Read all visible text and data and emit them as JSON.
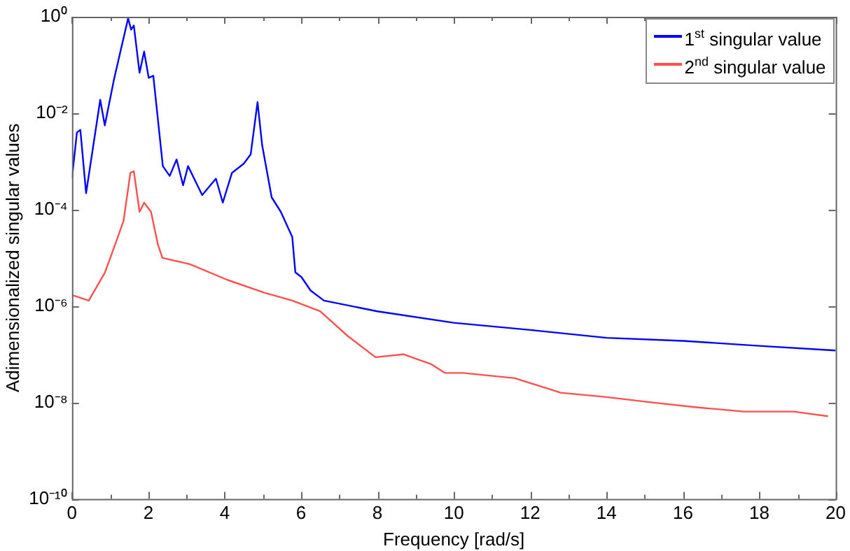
{
  "chart_data": {
    "type": "line",
    "xlabel": "Frequency [rad/s]",
    "ylabel": "Adimensionalized singular values",
    "log": "y",
    "grid": false,
    "legend": "top right",
    "marker": "none",
    "line_style": "solid",
    "xlim": [
      0,
      20
    ],
    "xticks": [
      0,
      {
        "value": 1,
        "label": null
      },
      2,
      {
        "value": 3,
        "label": null
      },
      4,
      {
        "value": 5,
        "label": null
      },
      6,
      {
        "value": 7,
        "label": null
      },
      8,
      {
        "value": 9,
        "label": null
      },
      10,
      {
        "value": 11,
        "label": null
      },
      12,
      {
        "value": 13,
        "label": null
      },
      14,
      {
        "value": 15,
        "label": null
      },
      16,
      {
        "value": 17,
        "label": null
      },
      18,
      {
        "value": 19,
        "label": null
      },
      20
    ],
    "ylim": [
      1e-10,
      1
    ],
    "yticks": [
      {
        "value": 1,
        "label": "10⁰"
      },
      {
        "value": 0.01,
        "label": "10⁻²"
      },
      {
        "value": 0.0001,
        "label": "10⁻⁴"
      },
      {
        "value": 1e-06,
        "label": "10⁻⁶"
      },
      {
        "value": 1e-08,
        "label": "10⁻⁸"
      },
      {
        "value": 1e-10,
        "label": "10⁻¹⁰"
      }
    ],
    "series": [
      {
        "name": "1$^{st}$ singular value",
        "color": "#0000ff",
        "x": [
          0,
          0.13,
          0.22,
          0.37,
          0.74,
          0.86,
          1.1,
          1.47,
          1.55,
          1.62,
          1.77,
          1.89,
          2.01,
          2.13,
          2.38,
          2.56,
          2.74,
          2.91,
          3.04,
          3.41,
          3.77,
          3.95,
          4.19,
          4.5,
          4.68,
          4.86,
          4.98,
          5.23,
          5.47,
          5.77,
          5.85,
          6.01,
          6.25,
          6.6,
          8,
          10,
          12,
          14,
          16,
          18,
          20
        ],
        "values": [
          0.00045,
          0.004,
          0.0045,
          0.00022,
          0.019,
          0.0056,
          0.05,
          0.93,
          0.54,
          0.66,
          0.069,
          0.19,
          0.054,
          0.06,
          0.0008,
          0.0005,
          0.0011,
          0.00032,
          0.0008,
          0.0002,
          0.00044,
          0.00014,
          0.00058,
          0.0009,
          0.0014,
          0.017,
          0.0022,
          0.00018,
          9e-05,
          2.7e-05,
          5e-06,
          4e-06,
          2.1e-06,
          1.3e-06,
          7.8e-07,
          4.5e-07,
          3.2e-07,
          2.2e-07,
          1.9e-07,
          1.5e-07,
          1.2e-07
        ]
      },
      {
        "name": "2$^{nd}$ singular value",
        "color": "#ff5050",
        "x": [
          0,
          0.44,
          0.86,
          1.04,
          1.35,
          1.53,
          1.62,
          1.77,
          1.89,
          2.07,
          2.25,
          2.37,
          3.09,
          4.07,
          5.04,
          5.77,
          6.5,
          7.22,
          7.95,
          8.68,
          9.4,
          9.77,
          10.25,
          11.6,
          12.8,
          14,
          15.2,
          16.4,
          17.6,
          18.9,
          19.8
        ],
        "values": [
          1.7e-06,
          1.3e-06,
          4.9e-06,
          1.2e-05,
          5.8e-05,
          0.00058,
          0.00063,
          9e-05,
          0.00014,
          9e-05,
          1.9e-05,
          1e-05,
          7.4e-06,
          3.5e-06,
          1.9e-06,
          1.3e-06,
          7.8e-07,
          2.4e-07,
          8.7e-08,
          1e-07,
          6.3e-08,
          4.1e-08,
          4.1e-08,
          3.2e-08,
          1.6e-08,
          1.3e-08,
          1e-08,
          7.9e-09,
          6.5e-09,
          6.5e-09,
          5.2e-09
        ]
      }
    ]
  }
}
